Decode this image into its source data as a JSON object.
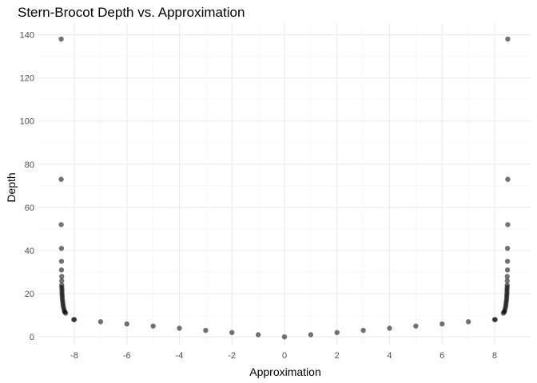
{
  "chart_data": {
    "type": "scatter",
    "title": "Stern-Brocot Depth vs. Approximation",
    "xlabel": "Approximation",
    "ylabel": "Depth",
    "xlim": [
      -9.4,
      9.4
    ],
    "ylim": [
      -4,
      145
    ],
    "x_ticks": [
      -8,
      -6,
      -4,
      -2,
      0,
      2,
      4,
      6,
      8
    ],
    "y_ticks": [
      0,
      20,
      40,
      60,
      80,
      100,
      120,
      140
    ],
    "grid": true,
    "point_color": "#000000",
    "point_opacity": 0.55,
    "points": [
      {
        "x": 0,
        "y": 0
      },
      {
        "x": 1,
        "y": 1
      },
      {
        "x": -1,
        "y": 1
      },
      {
        "x": 2,
        "y": 2
      },
      {
        "x": -2,
        "y": 2
      },
      {
        "x": 3,
        "y": 3
      },
      {
        "x": -3,
        "y": 3
      },
      {
        "x": 4,
        "y": 4
      },
      {
        "x": -4,
        "y": 4
      },
      {
        "x": 5,
        "y": 5
      },
      {
        "x": -5,
        "y": 5
      },
      {
        "x": 6,
        "y": 6
      },
      {
        "x": -6,
        "y": 6
      },
      {
        "x": 7,
        "y": 7
      },
      {
        "x": -7,
        "y": 7
      },
      {
        "x": 8,
        "y": 8
      },
      {
        "x": -8,
        "y": 8
      },
      {
        "x": 8.02,
        "y": 8
      },
      {
        "x": -8.02,
        "y": 8
      },
      {
        "x": 8.33,
        "y": 11
      },
      {
        "x": -8.33,
        "y": 11
      },
      {
        "x": 8.36,
        "y": 11.5
      },
      {
        "x": -8.36,
        "y": 11.5
      },
      {
        "x": 8.38,
        "y": 12
      },
      {
        "x": -8.38,
        "y": 12
      },
      {
        "x": 8.4,
        "y": 13
      },
      {
        "x": -8.4,
        "y": 13
      },
      {
        "x": 8.42,
        "y": 14
      },
      {
        "x": -8.42,
        "y": 14
      },
      {
        "x": 8.43,
        "y": 15
      },
      {
        "x": -8.43,
        "y": 15
      },
      {
        "x": 8.44,
        "y": 16
      },
      {
        "x": -8.44,
        "y": 16
      },
      {
        "x": 8.45,
        "y": 17
      },
      {
        "x": -8.45,
        "y": 17
      },
      {
        "x": 8.46,
        "y": 18
      },
      {
        "x": -8.46,
        "y": 18
      },
      {
        "x": 8.46,
        "y": 19
      },
      {
        "x": -8.46,
        "y": 19
      },
      {
        "x": 8.47,
        "y": 20
      },
      {
        "x": -8.47,
        "y": 20
      },
      {
        "x": 8.47,
        "y": 21
      },
      {
        "x": -8.47,
        "y": 21
      },
      {
        "x": 8.47,
        "y": 22
      },
      {
        "x": -8.47,
        "y": 22
      },
      {
        "x": 8.48,
        "y": 23
      },
      {
        "x": -8.48,
        "y": 23
      },
      {
        "x": 8.48,
        "y": 24
      },
      {
        "x": -8.48,
        "y": 24
      },
      {
        "x": 8.48,
        "y": 26
      },
      {
        "x": -8.48,
        "y": 26
      },
      {
        "x": 8.48,
        "y": 28
      },
      {
        "x": -8.48,
        "y": 28
      },
      {
        "x": 8.49,
        "y": 31
      },
      {
        "x": -8.49,
        "y": 31
      },
      {
        "x": 8.49,
        "y": 35
      },
      {
        "x": -8.49,
        "y": 35
      },
      {
        "x": 8.49,
        "y": 41
      },
      {
        "x": -8.49,
        "y": 41
      },
      {
        "x": 8.5,
        "y": 52
      },
      {
        "x": -8.5,
        "y": 52
      },
      {
        "x": 8.5,
        "y": 73
      },
      {
        "x": -8.5,
        "y": 73
      },
      {
        "x": 8.5,
        "y": 138
      },
      {
        "x": -8.5,
        "y": 138
      }
    ]
  }
}
